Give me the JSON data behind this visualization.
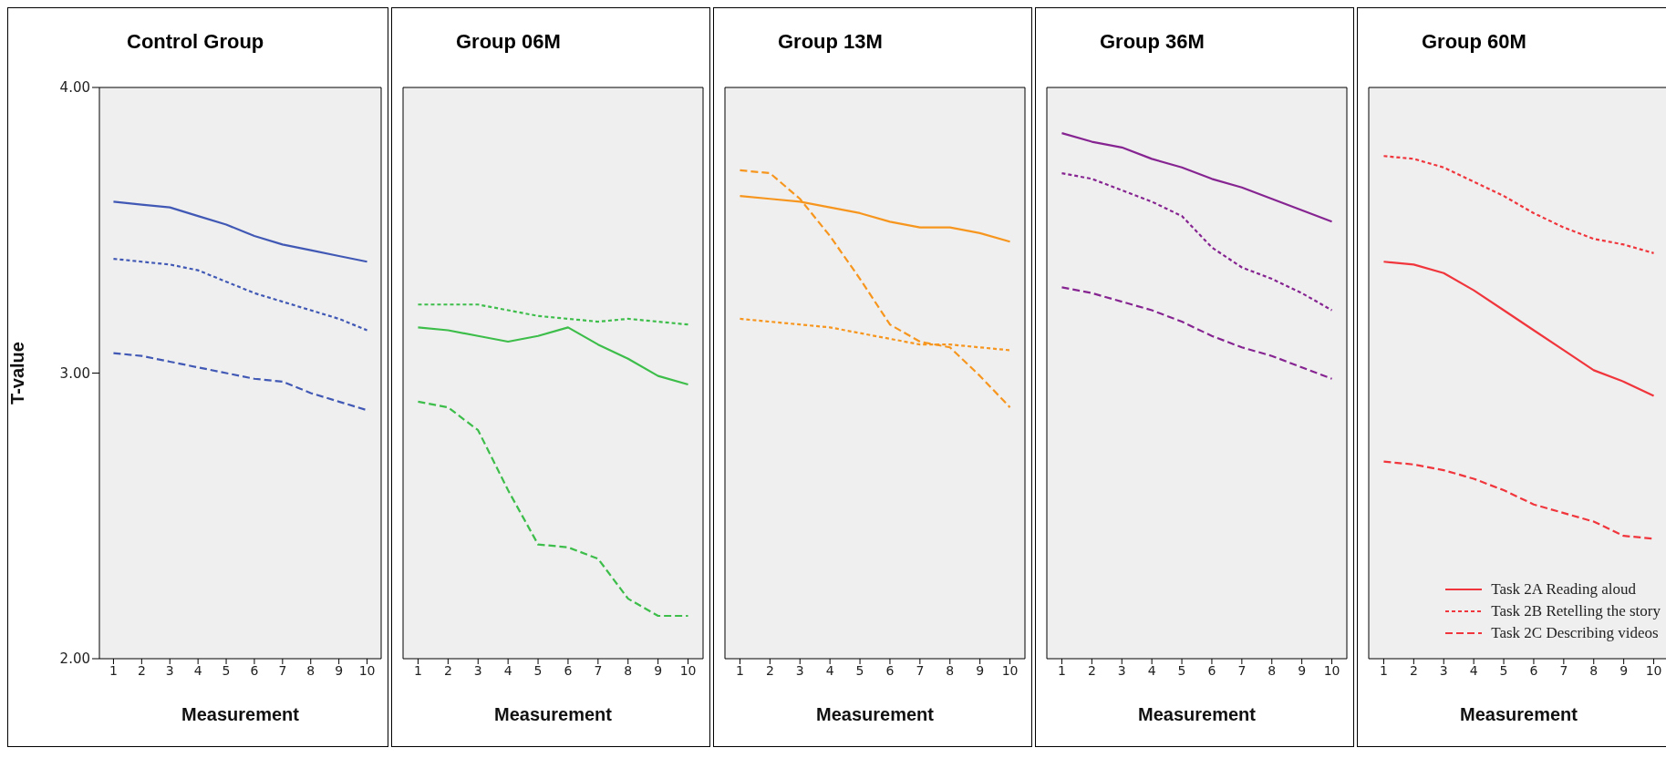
{
  "chart_data": [
    {
      "type": "line",
      "title": "Control Group",
      "xlabel": "Measurement",
      "ylabel": "T-value",
      "categories": [
        "1",
        "2",
        "3",
        "4",
        "5",
        "6",
        "7",
        "8",
        "9",
        "10"
      ],
      "ylim": [
        2,
        4
      ],
      "yticks": [
        {
          "value": 2,
          "label": "2.00"
        },
        {
          "value": 3,
          "label": "3.00"
        },
        {
          "value": 4,
          "label": "4.00"
        }
      ],
      "grid": false,
      "legend": false,
      "series": [
        {
          "color": "#4159b5",
          "line_style": "solid",
          "values": [
            3.6,
            3.59,
            3.58,
            3.55,
            3.52,
            3.48,
            3.45,
            3.43,
            3.41,
            3.39
          ]
        },
        {
          "color": "#4159b5",
          "line_style": "dotted",
          "values": [
            3.4,
            3.39,
            3.38,
            3.36,
            3.32,
            3.28,
            3.25,
            3.22,
            3.19,
            3.15
          ]
        },
        {
          "color": "#4159b5",
          "line_style": "dashed",
          "values": [
            3.07,
            3.06,
            3.04,
            3.02,
            3.0,
            2.98,
            2.97,
            2.93,
            2.9,
            2.87
          ]
        }
      ]
    },
    {
      "type": "line",
      "title": "Group 06M",
      "xlabel": "Measurement",
      "categories": [
        "1",
        "2",
        "3",
        "4",
        "5",
        "6",
        "7",
        "8",
        "9",
        "10"
      ],
      "ylim": [
        2,
        4
      ],
      "tick_labels": "x",
      "grid": false,
      "legend": false,
      "series": [
        {
          "color": "#3dbd4a",
          "line_style": "solid",
          "values": [
            3.16,
            3.15,
            3.13,
            3.11,
            3.13,
            3.16,
            3.1,
            3.05,
            2.99,
            2.96
          ]
        },
        {
          "color": "#3dbd4a",
          "line_style": "dotted",
          "values": [
            3.24,
            3.24,
            3.24,
            3.22,
            3.2,
            3.19,
            3.18,
            3.19,
            3.18,
            3.17
          ]
        },
        {
          "color": "#3dbd4a",
          "line_style": "dashed",
          "values": [
            2.9,
            2.88,
            2.8,
            2.59,
            2.4,
            2.39,
            2.35,
            2.21,
            2.15,
            2.15
          ]
        }
      ]
    },
    {
      "type": "line",
      "title": "Group 13M",
      "xlabel": "Measurement",
      "categories": [
        "1",
        "2",
        "3",
        "4",
        "5",
        "6",
        "7",
        "8",
        "9",
        "10"
      ],
      "ylim": [
        2,
        4
      ],
      "tick_labels": "x",
      "grid": false,
      "legend": false,
      "series": [
        {
          "color": "#f7961e",
          "line_style": "solid",
          "values": [
            3.62,
            3.61,
            3.6,
            3.58,
            3.56,
            3.53,
            3.51,
            3.51,
            3.49,
            3.46
          ]
        },
        {
          "color": "#f7961e",
          "line_style": "dotted",
          "values": [
            3.19,
            3.18,
            3.17,
            3.16,
            3.14,
            3.12,
            3.1,
            3.1,
            3.09,
            3.08
          ]
        },
        {
          "color": "#f7961e",
          "line_style": "dashed",
          "values": [
            3.71,
            3.7,
            3.61,
            3.48,
            3.33,
            3.17,
            3.11,
            3.09,
            2.99,
            2.88
          ]
        }
      ]
    },
    {
      "type": "line",
      "title": "Group 36M",
      "xlabel": "Measurement",
      "categories": [
        "1",
        "2",
        "3",
        "4",
        "5",
        "6",
        "7",
        "8",
        "9",
        "10"
      ],
      "ylim": [
        2,
        4
      ],
      "tick_labels": "x",
      "grid": false,
      "legend": false,
      "series": [
        {
          "color": "#862591",
          "line_style": "solid",
          "values": [
            3.84,
            3.81,
            3.79,
            3.75,
            3.72,
            3.68,
            3.65,
            3.61,
            3.57,
            3.53
          ]
        },
        {
          "color": "#862591",
          "line_style": "dotted",
          "values": [
            3.7,
            3.68,
            3.64,
            3.6,
            3.55,
            3.44,
            3.37,
            3.33,
            3.28,
            3.22
          ]
        },
        {
          "color": "#862591",
          "line_style": "dashed",
          "values": [
            3.3,
            3.28,
            3.25,
            3.22,
            3.18,
            3.13,
            3.09,
            3.06,
            3.02,
            2.98
          ]
        }
      ]
    },
    {
      "type": "line",
      "title": "Group 60M",
      "xlabel": "Measurement",
      "categories": [
        "1",
        "2",
        "3",
        "4",
        "5",
        "6",
        "7",
        "8",
        "9",
        "10"
      ],
      "ylim": [
        2,
        4
      ],
      "tick_labels": "x",
      "grid": false,
      "legend": "bottom right",
      "series": [
        {
          "name": "Task 2A Reading aloud",
          "color": "#f0363c",
          "line_style": "solid",
          "values": [
            3.39,
            3.38,
            3.35,
            3.29,
            3.22,
            3.15,
            3.08,
            3.01,
            2.97,
            2.92
          ]
        },
        {
          "name": "Task 2B Retelling the story",
          "color": "#f0363c",
          "line_style": "dotted",
          "values": [
            3.76,
            3.75,
            3.72,
            3.67,
            3.62,
            3.56,
            3.51,
            3.47,
            3.45,
            3.42
          ]
        },
        {
          "name": "Task 2C Describing videos",
          "color": "#f0363c",
          "line_style": "dashed",
          "values": [
            2.69,
            2.68,
            2.66,
            2.63,
            2.59,
            2.54,
            2.51,
            2.48,
            2.43,
            2.42
          ]
        }
      ]
    }
  ]
}
